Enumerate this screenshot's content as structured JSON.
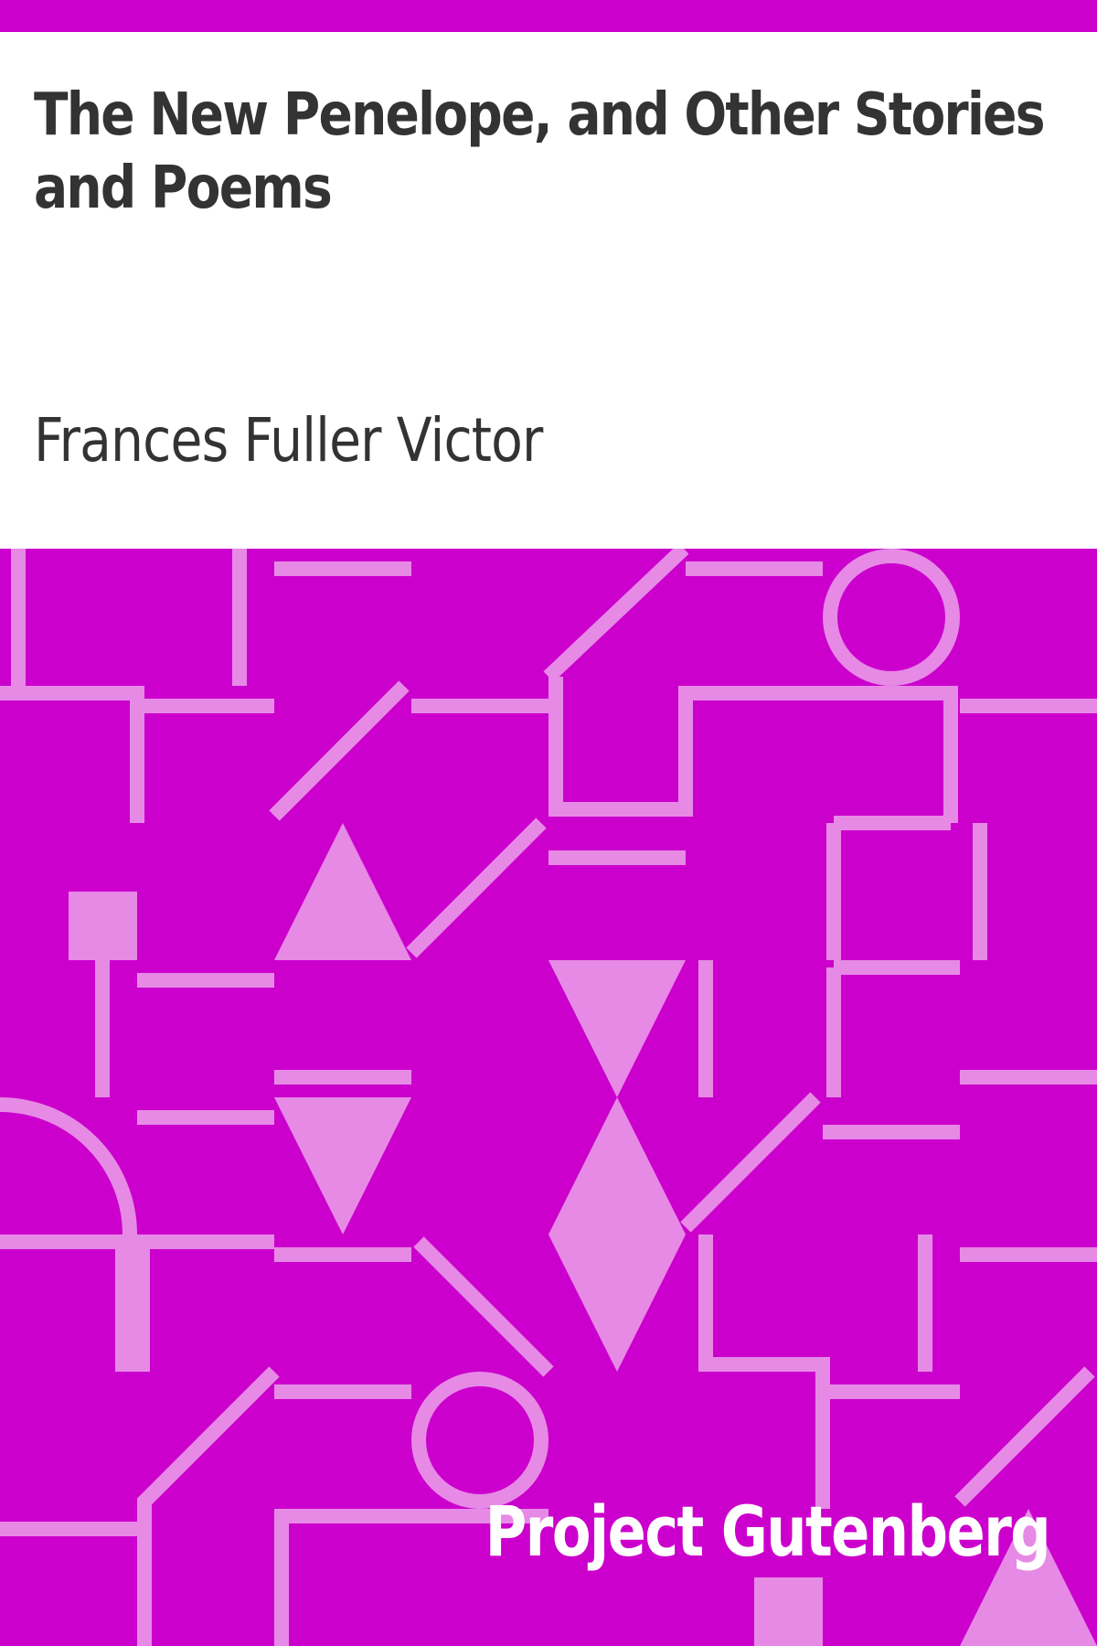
{
  "cover": {
    "title": "The New Penelope, and Other Stories and Poems",
    "author": "Frances Fuller Victor",
    "publisher": "Project Gutenberg"
  },
  "colors": {
    "background": "#cc00cc",
    "pattern": "#e68ae6",
    "text": "#333333",
    "publisher_text": "#ffffff"
  },
  "icons": {
    "pattern": "geometric-pattern-icon"
  }
}
